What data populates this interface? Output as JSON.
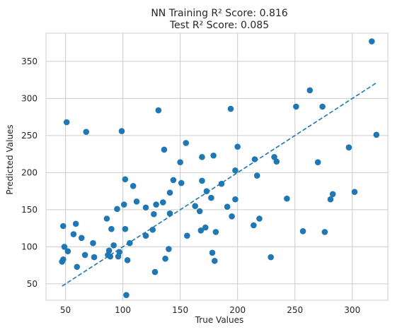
{
  "chart_data": {
    "type": "scatter",
    "title_line1": "NN Training R² Score: 0.816",
    "title_line2": "Test R² Score: 0.085",
    "xlabel": "True Values",
    "ylabel": "Predicted Values",
    "xlim": [
      33,
      331
    ],
    "ylim": [
      28,
      388
    ],
    "xticks": [
      50,
      100,
      150,
      200,
      250,
      300
    ],
    "yticks": [
      50,
      100,
      150,
      200,
      250,
      300,
      350
    ],
    "grid": true,
    "point_color": "#1f77b4",
    "line_color": "#1f77b4",
    "diagonal": {
      "from": 47,
      "to": 321,
      "style": "dashed"
    },
    "points": [
      [
        47,
        80
      ],
      [
        48,
        128
      ],
      [
        48,
        83
      ],
      [
        49,
        100
      ],
      [
        51,
        268
      ],
      [
        52,
        94
      ],
      [
        57,
        117
      ],
      [
        59,
        131
      ],
      [
        60,
        73
      ],
      [
        64,
        112
      ],
      [
        67,
        89
      ],
      [
        68,
        255
      ],
      [
        74,
        105
      ],
      [
        75,
        86
      ],
      [
        86,
        138
      ],
      [
        87,
        89
      ],
      [
        88,
        95
      ],
      [
        89,
        87
      ],
      [
        90,
        124
      ],
      [
        92,
        102
      ],
      [
        95,
        151
      ],
      [
        96,
        87
      ],
      [
        97,
        93
      ],
      [
        99,
        256
      ],
      [
        101,
        157
      ],
      [
        102,
        124
      ],
      [
        102,
        191
      ],
      [
        103,
        35
      ],
      [
        104,
        82
      ],
      [
        106,
        105
      ],
      [
        109,
        182
      ],
      [
        112,
        161
      ],
      [
        120,
        115
      ],
      [
        120,
        153
      ],
      [
        126,
        123
      ],
      [
        127,
        144
      ],
      [
        128,
        66
      ],
      [
        129,
        157
      ],
      [
        131,
        284
      ],
      [
        135,
        160
      ],
      [
        136,
        231
      ],
      [
        137,
        84
      ],
      [
        140,
        97
      ],
      [
        141,
        145
      ],
      [
        141,
        173
      ],
      [
        144,
        190
      ],
      [
        150,
        214
      ],
      [
        151,
        186
      ],
      [
        155,
        240
      ],
      [
        156,
        115
      ],
      [
        163,
        155
      ],
      [
        167,
        148
      ],
      [
        168,
        122
      ],
      [
        169,
        221
      ],
      [
        169,
        189
      ],
      [
        172,
        126
      ],
      [
        173,
        175
      ],
      [
        177,
        166
      ],
      [
        178,
        92
      ],
      [
        179,
        223
      ],
      [
        180,
        81
      ],
      [
        181,
        120
      ],
      [
        186,
        185
      ],
      [
        191,
        154
      ],
      [
        194,
        286
      ],
      [
        195,
        141
      ],
      [
        198,
        164
      ],
      [
        198,
        203
      ],
      [
        200,
        235
      ],
      [
        214,
        129
      ],
      [
        215,
        218
      ],
      [
        217,
        196
      ],
      [
        219,
        138
      ],
      [
        229,
        86
      ],
      [
        232,
        221
      ],
      [
        234,
        215
      ],
      [
        243,
        165
      ],
      [
        251,
        289
      ],
      [
        257,
        121
      ],
      [
        263,
        311
      ],
      [
        270,
        214
      ],
      [
        274,
        289
      ],
      [
        276,
        120
      ],
      [
        281,
        164
      ],
      [
        283,
        171
      ],
      [
        297,
        234
      ],
      [
        302,
        174
      ],
      [
        317,
        377
      ],
      [
        321,
        251
      ]
    ]
  }
}
